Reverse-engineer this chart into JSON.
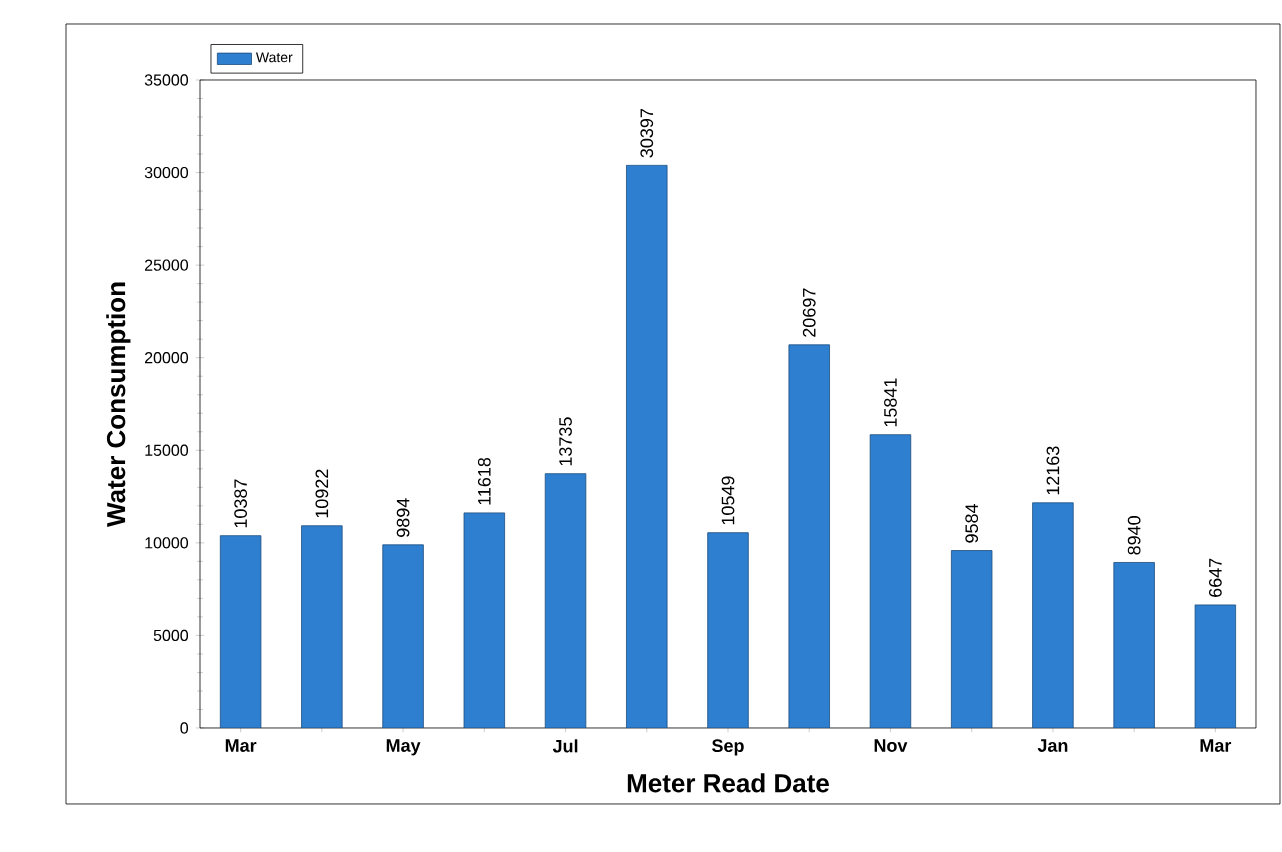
{
  "chart_data": {
    "type": "bar",
    "xlabel": "Meter Read Date",
    "ylabel": "Water Consumption",
    "categories": [
      "Mar",
      null,
      "May",
      null,
      "Jul",
      null,
      "Sep",
      null,
      "Nov",
      null,
      "Jan",
      null,
      "Mar"
    ],
    "series": [
      {
        "name": "Water",
        "color": "#2f7fd0",
        "values": [
          10387,
          10922,
          9894,
          11618,
          13735,
          30397,
          10549,
          20697,
          15841,
          9584,
          12163,
          8940,
          6647
        ]
      }
    ],
    "ylim": [
      0,
      35000
    ],
    "yticks": [
      0,
      5000,
      10000,
      15000,
      20000,
      25000,
      30000,
      35000
    ],
    "data_labels": true,
    "legend": "top left",
    "grid": false
  }
}
